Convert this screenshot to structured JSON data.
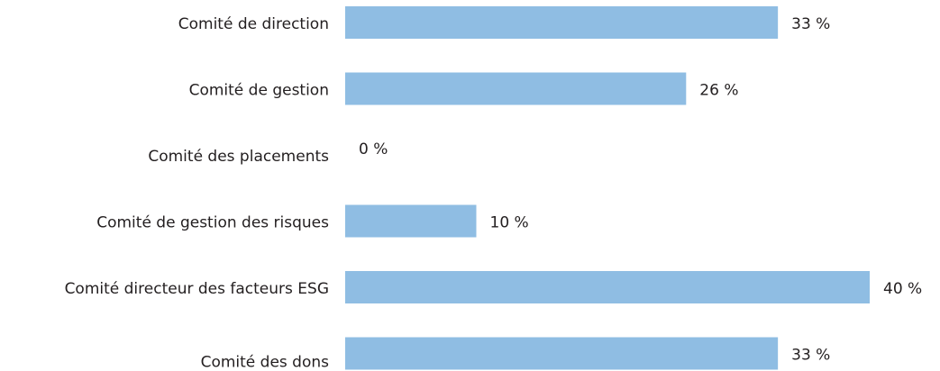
{
  "chart_data": {
    "type": "bar",
    "orientation": "horizontal",
    "categories": [
      "Comité de direction",
      "Comité de gestion",
      "Comité des placements",
      "Comité de gestion des risques",
      "Comité directeur des facteurs ESG",
      "Comité des dons"
    ],
    "values": [
      33,
      26,
      0,
      10,
      40,
      33
    ],
    "value_labels": [
      "33 %",
      "26 %",
      "0 %",
      "10 %",
      "40 %",
      "33 %"
    ],
    "color": "#8fbde3"
  }
}
